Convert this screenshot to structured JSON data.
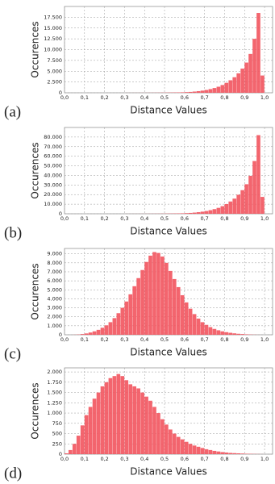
{
  "chart_data": [
    {
      "type": "histogram",
      "panel_label": "(a)",
      "xlabel": "Distance Values",
      "ylabel": "Occurences",
      "color": "#f2545e",
      "grid": true,
      "bins": [
        0,
        0.02,
        0.04,
        0.06,
        0.08,
        0.1,
        0.12,
        0.14,
        0.16,
        0.18,
        0.2,
        0.22,
        0.24,
        0.26,
        0.28,
        0.3,
        0.32,
        0.34,
        0.36,
        0.38,
        0.4,
        0.42,
        0.44,
        0.46,
        0.48,
        0.5,
        0.52,
        0.54,
        0.56,
        0.58,
        0.6,
        0.62,
        0.64,
        0.66,
        0.68,
        0.7,
        0.72,
        0.74,
        0.76,
        0.78,
        0.8,
        0.82,
        0.84,
        0.86,
        0.88,
        0.9,
        0.92,
        0.94,
        0.96,
        0.98,
        1
      ],
      "counts": [
        0,
        0,
        0,
        0,
        0,
        0,
        0,
        0,
        0,
        0,
        0,
        0,
        0,
        0,
        0,
        5,
        5,
        10,
        10,
        15,
        15,
        20,
        25,
        30,
        40,
        50,
        60,
        75,
        90,
        110,
        150,
        200,
        280,
        380,
        500,
        650,
        850,
        1100,
        1400,
        1800,
        2300,
        2900,
        3600,
        4500,
        5600,
        7000,
        9000,
        12500,
        18500,
        4000
      ],
      "xlim": [
        0,
        1.04
      ],
      "ylim": [
        0,
        20000
      ],
      "xticks": [
        {
          "value": 0,
          "label": "0,0"
        },
        {
          "value": 0.1,
          "label": "0,1"
        },
        {
          "value": 0.2,
          "label": "0,2"
        },
        {
          "value": 0.3,
          "label": "0,3"
        },
        {
          "value": 0.4,
          "label": "0,4"
        },
        {
          "value": 0.5,
          "label": "0,5"
        },
        {
          "value": 0.6,
          "label": "0,6"
        },
        {
          "value": 0.7,
          "label": "0,7"
        },
        {
          "value": 0.8,
          "label": "0,8"
        },
        {
          "value": 0.9,
          "label": "0,9"
        },
        {
          "value": 1,
          "label": "1,0"
        }
      ],
      "yticks": [
        0,
        {
          "value": 2500,
          "label": "2.500"
        },
        {
          "value": 5000,
          "label": "5.000"
        },
        {
          "value": 7500,
          "label": "7.500"
        },
        {
          "value": 10000,
          "label": "10.000"
        },
        {
          "value": 12500,
          "label": "12.500"
        },
        {
          "value": 15000,
          "label": "15.000"
        },
        {
          "value": 17500,
          "label": "17.500"
        }
      ]
    },
    {
      "type": "histogram",
      "panel_label": "(b)",
      "xlabel": "Distance Values",
      "ylabel": "Occurences",
      "color": "#f2545e",
      "grid": true,
      "bins": [
        0,
        0.02,
        0.04,
        0.06,
        0.08,
        0.1,
        0.12,
        0.14,
        0.16,
        0.18,
        0.2,
        0.22,
        0.24,
        0.26,
        0.28,
        0.3,
        0.32,
        0.34,
        0.36,
        0.38,
        0.4,
        0.42,
        0.44,
        0.46,
        0.48,
        0.5,
        0.52,
        0.54,
        0.56,
        0.58,
        0.6,
        0.62,
        0.64,
        0.66,
        0.68,
        0.7,
        0.72,
        0.74,
        0.76,
        0.78,
        0.8,
        0.82,
        0.84,
        0.86,
        0.88,
        0.9,
        0.92,
        0.94,
        0.96,
        0.98,
        1
      ],
      "counts": [
        0,
        0,
        0,
        0,
        0,
        0,
        0,
        0,
        0,
        0,
        0,
        0,
        0,
        0,
        0,
        20,
        20,
        40,
        40,
        60,
        70,
        90,
        110,
        130,
        170,
        220,
        260,
        330,
        400,
        480,
        660,
        880,
        1230,
        1670,
        2200,
        2860,
        3740,
        4840,
        6160,
        7920,
        10100,
        12800,
        15800,
        19800,
        24600,
        30800,
        39600,
        55000,
        82000,
        17600
      ],
      "xlim": [
        0,
        1.04
      ],
      "ylim": [
        0,
        90000
      ],
      "xticks": [
        {
          "value": 0,
          "label": "0,0"
        },
        {
          "value": 0.1,
          "label": "0,1"
        },
        {
          "value": 0.2,
          "label": "0,2"
        },
        {
          "value": 0.3,
          "label": "0,3"
        },
        {
          "value": 0.4,
          "label": "0,4"
        },
        {
          "value": 0.5,
          "label": "0,5"
        },
        {
          "value": 0.6,
          "label": "0,6"
        },
        {
          "value": 0.7,
          "label": "0,7"
        },
        {
          "value": 0.8,
          "label": "0,8"
        },
        {
          "value": 0.9,
          "label": "0,9"
        },
        {
          "value": 1,
          "label": "1,0"
        }
      ],
      "yticks": [
        0,
        {
          "value": 10000,
          "label": "10.000"
        },
        {
          "value": 20000,
          "label": "20.000"
        },
        {
          "value": 30000,
          "label": "30.000"
        },
        {
          "value": 40000,
          "label": "40.000"
        },
        {
          "value": 50000,
          "label": "50.000"
        },
        {
          "value": 60000,
          "label": "60.000"
        },
        {
          "value": 70000,
          "label": "70.000"
        },
        {
          "value": 80000,
          "label": "80.000"
        }
      ]
    },
    {
      "type": "histogram",
      "panel_label": "(c)",
      "xlabel": "Distance Values",
      "ylabel": "Occurences",
      "color": "#f2545e",
      "grid": true,
      "bins": [
        0,
        0.02,
        0.04,
        0.06,
        0.08,
        0.1,
        0.12,
        0.14,
        0.16,
        0.18,
        0.2,
        0.22,
        0.24,
        0.26,
        0.28,
        0.3,
        0.32,
        0.34,
        0.36,
        0.38,
        0.4,
        0.42,
        0.44,
        0.46,
        0.48,
        0.5,
        0.52,
        0.54,
        0.56,
        0.58,
        0.6,
        0.62,
        0.64,
        0.66,
        0.68,
        0.7,
        0.72,
        0.74,
        0.76,
        0.78,
        0.8,
        0.82,
        0.84,
        0.86,
        0.88,
        0.9,
        0.92,
        0.94,
        0.96,
        0.98,
        1
      ],
      "counts": [
        0,
        0,
        10,
        30,
        80,
        150,
        250,
        380,
        550,
        780,
        1050,
        1400,
        1850,
        2400,
        3000,
        3700,
        4500,
        5400,
        6300,
        7200,
        8100,
        8800,
        9200,
        9100,
        8700,
        8000,
        7100,
        6200,
        5300,
        4400,
        3600,
        2900,
        2300,
        1800,
        1400,
        1100,
        850,
        650,
        500,
        380,
        290,
        220,
        160,
        110,
        80,
        50,
        30,
        15,
        5,
        0
      ],
      "xlim": [
        0,
        1.04
      ],
      "ylim": [
        0,
        9600
      ],
      "xticks": [
        {
          "value": 0,
          "label": "0,0"
        },
        {
          "value": 0.1,
          "label": "0,1"
        },
        {
          "value": 0.2,
          "label": "0,2"
        },
        {
          "value": 0.3,
          "label": "0,3"
        },
        {
          "value": 0.4,
          "label": "0,4"
        },
        {
          "value": 0.5,
          "label": "0,5"
        },
        {
          "value": 0.6,
          "label": "0,6"
        },
        {
          "value": 0.7,
          "label": "0,7"
        },
        {
          "value": 0.8,
          "label": "0,8"
        },
        {
          "value": 0.9,
          "label": "0,9"
        },
        {
          "value": 1,
          "label": "1,0"
        }
      ],
      "yticks": [
        0,
        {
          "value": 1000,
          "label": "1.000"
        },
        {
          "value": 2000,
          "label": "2.000"
        },
        {
          "value": 3000,
          "label": "3.000"
        },
        {
          "value": 4000,
          "label": "4.000"
        },
        {
          "value": 5000,
          "label": "5.000"
        },
        {
          "value": 6000,
          "label": "6.000"
        },
        {
          "value": 7000,
          "label": "7.000"
        },
        {
          "value": 8000,
          "label": "8.000"
        },
        {
          "value": 9000,
          "label": "9.000"
        }
      ]
    },
    {
      "type": "histogram",
      "panel_label": "(d)",
      "xlabel": "Distance Values",
      "ylabel": "Occurences",
      "color": "#f2545e",
      "grid": true,
      "bins": [
        0,
        0.02,
        0.04,
        0.06,
        0.08,
        0.1,
        0.12,
        0.14,
        0.16,
        0.18,
        0.2,
        0.22,
        0.24,
        0.26,
        0.28,
        0.3,
        0.32,
        0.34,
        0.36,
        0.38,
        0.4,
        0.42,
        0.44,
        0.46,
        0.48,
        0.5,
        0.52,
        0.54,
        0.56,
        0.58,
        0.6,
        0.62,
        0.64,
        0.66,
        0.68,
        0.7,
        0.72,
        0.74,
        0.76,
        0.78,
        0.8,
        0.82,
        0.84,
        0.86,
        0.88,
        0.9,
        0.92,
        0.94,
        0.96,
        0.98,
        1
      ],
      "counts": [
        20,
        100,
        250,
        450,
        700,
        950,
        1150,
        1350,
        1500,
        1650,
        1750,
        1850,
        1900,
        1950,
        1900,
        1800,
        1700,
        1650,
        1600,
        1500,
        1400,
        1300,
        1150,
        1000,
        850,
        720,
        600,
        500,
        420,
        360,
        300,
        250,
        210,
        180,
        150,
        120,
        100,
        80,
        65,
        50,
        40,
        30,
        25,
        20,
        15,
        10,
        8,
        5,
        3,
        1
      ],
      "xlim": [
        0,
        1.04
      ],
      "ylim": [
        0,
        2100
      ],
      "xticks": [
        {
          "value": 0,
          "label": "0,0"
        },
        {
          "value": 0.1,
          "label": "0,1"
        },
        {
          "value": 0.2,
          "label": "0,2"
        },
        {
          "value": 0.3,
          "label": "0,3"
        },
        {
          "value": 0.4,
          "label": "0,4"
        },
        {
          "value": 0.5,
          "label": "0,5"
        },
        {
          "value": 0.6,
          "label": "0,6"
        },
        {
          "value": 0.7,
          "label": "0,7"
        },
        {
          "value": 0.8,
          "label": "0,8"
        },
        {
          "value": 0.9,
          "label": "0,9"
        },
        {
          "value": 1,
          "label": "1,0"
        }
      ],
      "yticks": [
        0,
        250,
        500,
        750,
        {
          "value": 1000,
          "label": "1.000"
        },
        {
          "value": 1250,
          "label": "1.250"
        },
        {
          "value": 1500,
          "label": "1.500"
        },
        {
          "value": 1750,
          "label": "1.750"
        },
        {
          "value": 2000,
          "label": "2.000"
        }
      ]
    }
  ]
}
